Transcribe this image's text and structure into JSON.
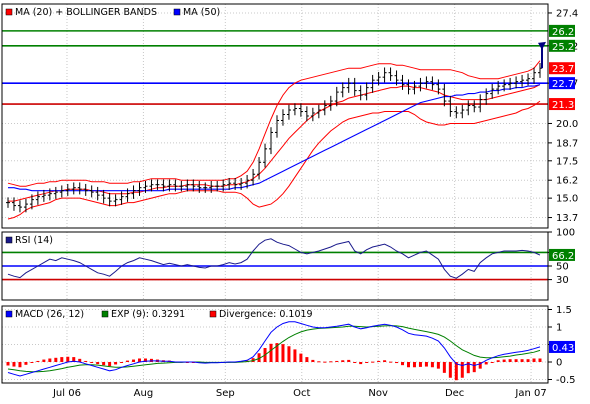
{
  "colors": {
    "background": "#ffffff",
    "grid": "#c8c8c8",
    "ohlc": "#000000",
    "ma20": "#ff0000",
    "bollinger": "#ff0000",
    "ma50": "#0000ff",
    "resistance": "#008000",
    "support_blue": "#0000ff",
    "support_red": "#cc0000",
    "projection": "#000080",
    "rsi_line": "#1a1a8c",
    "macd_line": "#0000ff",
    "exp_line": "#008000",
    "divergence": "#ff0000",
    "tag_green": "#008000",
    "tag_blue": "#0000ff",
    "tag_red": "#ff0000"
  },
  "x_axis": {
    "labels": [
      "Jul 06",
      "Aug",
      "Sep",
      "Oct",
      "Nov",
      "Dec",
      "Jan 07"
    ]
  },
  "price_panel": {
    "legend": [
      {
        "text": "MA (20) + BOLLINGER BANDS",
        "color_key": "ma20"
      },
      {
        "text": "MA (50)",
        "color_key": "ma50"
      }
    ],
    "y_ticks": [
      "27.4",
      "25.2",
      "22.7",
      "20.0",
      "18.7",
      "17.5",
      "16.2",
      "15.0",
      "13.7"
    ],
    "y_range": [
      13.0,
      28.0
    ],
    "levels": [
      {
        "value": 26.2,
        "label": "26.2",
        "color_key": "resistance",
        "tag_color_key": "tag_green"
      },
      {
        "value": 25.2,
        "label": "25.2",
        "color_key": "resistance",
        "tag_color_key": "tag_green"
      },
      {
        "value": 22.7,
        "label": "22.7",
        "color_key": "support_blue",
        "tag_color_key": "tag_blue"
      },
      {
        "value": 21.3,
        "label": "21.3",
        "color_key": "support_red",
        "tag_color_key": "tag_red"
      }
    ],
    "last_price_tag": {
      "value": 23.7,
      "label": "23.7",
      "tag_color_key": "tag_red"
    },
    "ticks": [
      "22.5",
      "21.2",
      "20.0",
      "18.7",
      "17.5",
      "16.2",
      "15.0",
      "13.7"
    ]
  },
  "rsi_panel": {
    "legend": [
      {
        "text": "RSI (14)",
        "color_key": "rsi_line"
      }
    ],
    "y_ticks": [
      "100",
      "70",
      "50",
      "30"
    ],
    "y_range": [
      0,
      100
    ],
    "levels": [
      {
        "value": 70,
        "label": "70",
        "color_key": "resistance"
      },
      {
        "value": 50,
        "label": "50",
        "color_key": "support_blue"
      },
      {
        "value": 30,
        "label": "30",
        "color_key": "support_red"
      }
    ],
    "last_value_tag": {
      "value": 66.26,
      "label": "66.26",
      "tag_color_key": "tag_green"
    }
  },
  "macd_panel": {
    "legend": [
      {
        "text": "MACD (26, 12)",
        "color_key": "macd_line"
      },
      {
        "text": "EXP (9): 0.3291",
        "color_key": "exp_line"
      },
      {
        "text": "Divergence: 0.1019",
        "color_key": "divergence"
      }
    ],
    "y_ticks": [
      "1.5",
      "1",
      "0.5",
      "0",
      "-0.5"
    ],
    "y_range": [
      -0.6,
      1.6
    ],
    "last_value_tag": {
      "value": 0.43,
      "label": "0.43",
      "tag_color_key": "tag_blue"
    }
  },
  "chart_data": {
    "type": "line",
    "title": "",
    "x_labels": [
      "Jul 06",
      "Aug",
      "Sep",
      "Oct",
      "Nov",
      "Dec",
      "Jan 07"
    ],
    "price_close": [
      14.7,
      14.5,
      14.4,
      14.6,
      14.9,
      15.1,
      15.2,
      15.3,
      15.4,
      15.5,
      15.6,
      15.7,
      15.6,
      15.5,
      15.4,
      15.2,
      15.0,
      14.8,
      14.9,
      15.1,
      15.3,
      15.5,
      15.7,
      15.8,
      15.9,
      15.9,
      15.8,
      15.9,
      15.8,
      15.8,
      15.9,
      15.8,
      15.7,
      15.7,
      15.8,
      15.8,
      15.9,
      16.0,
      15.9,
      16.0,
      16.2,
      16.6,
      17.4,
      18.3,
      19.4,
      20.2,
      20.6,
      20.9,
      21.0,
      20.8,
      20.5,
      20.7,
      20.9,
      21.2,
      21.5,
      22.1,
      22.4,
      22.7,
      22.2,
      21.9,
      22.4,
      22.9,
      23.1,
      23.4,
      23.2,
      22.9,
      22.6,
      22.3,
      22.5,
      22.7,
      22.8,
      22.6,
      22.3,
      21.5,
      20.8,
      20.7,
      20.9,
      21.2,
      21.1,
      21.6,
      22.0,
      22.3,
      22.5,
      22.6,
      22.7,
      22.8,
      22.9,
      23.0,
      23.4,
      23.7
    ],
    "ma20": [
      14.8,
      14.8,
      14.9,
      15.0,
      15.1,
      15.2,
      15.3,
      15.4,
      15.5,
      15.5,
      15.6,
      15.6,
      15.6,
      15.6,
      15.5,
      15.5,
      15.4,
      15.3,
      15.3,
      15.3,
      15.3,
      15.4,
      15.4,
      15.5,
      15.6,
      15.7,
      15.7,
      15.8,
      15.8,
      15.8,
      15.9,
      15.9,
      15.9,
      15.9,
      15.8,
      15.8,
      15.8,
      15.9,
      15.9,
      16.0,
      16.1,
      16.3,
      16.6,
      17.0,
      17.5,
      18.0,
      18.5,
      19.0,
      19.4,
      19.8,
      20.2,
      20.5,
      20.8,
      21.0,
      21.2,
      21.4,
      21.5,
      21.7,
      21.8,
      21.9,
      22.0,
      22.1,
      22.2,
      22.3,
      22.4,
      22.4,
      22.5,
      22.5,
      22.4,
      22.4,
      22.3,
      22.2,
      22.1,
      21.9,
      21.8,
      21.7,
      21.6,
      21.6,
      21.6,
      21.6,
      21.6,
      21.7,
      21.8,
      21.9,
      22.0,
      22.1,
      22.2,
      22.3,
      22.4,
      22.6
    ],
    "upper_band": [
      16.0,
      15.9,
      15.8,
      15.8,
      15.9,
      16.0,
      16.0,
      16.1,
      16.1,
      16.2,
      16.2,
      16.2,
      16.2,
      16.2,
      16.1,
      16.1,
      16.1,
      16.0,
      16.0,
      16.0,
      16.0,
      16.1,
      16.1,
      16.2,
      16.3,
      16.3,
      16.3,
      16.3,
      16.3,
      16.2,
      16.2,
      16.2,
      16.2,
      16.2,
      16.2,
      16.2,
      16.2,
      16.3,
      16.3,
      16.5,
      16.8,
      17.4,
      18.3,
      19.3,
      20.3,
      21.2,
      21.9,
      22.4,
      22.7,
      22.9,
      23.0,
      23.1,
      23.2,
      23.3,
      23.4,
      23.5,
      23.6,
      23.7,
      23.7,
      23.7,
      23.8,
      23.9,
      24.0,
      24.0,
      24.0,
      23.9,
      23.9,
      23.8,
      23.7,
      23.6,
      23.6,
      23.6,
      23.6,
      23.6,
      23.6,
      23.5,
      23.4,
      23.2,
      23.1,
      23.0,
      23.0,
      23.0,
      23.0,
      23.1,
      23.2,
      23.3,
      23.4,
      23.5,
      23.7,
      24.2
    ],
    "lower_band": [
      13.6,
      13.7,
      13.9,
      14.2,
      14.4,
      14.5,
      14.6,
      14.7,
      14.9,
      15.0,
      15.0,
      15.0,
      15.0,
      14.9,
      14.8,
      14.7,
      14.6,
      14.5,
      14.5,
      14.6,
      14.7,
      14.7,
      14.8,
      14.9,
      15.0,
      15.1,
      15.2,
      15.3,
      15.3,
      15.4,
      15.5,
      15.5,
      15.5,
      15.5,
      15.5,
      15.5,
      15.4,
      15.4,
      15.4,
      15.3,
      15.0,
      14.6,
      14.4,
      14.5,
      14.6,
      14.9,
      15.3,
      15.8,
      16.4,
      17.0,
      17.6,
      18.2,
      18.7,
      19.1,
      19.5,
      19.8,
      20.1,
      20.3,
      20.4,
      20.5,
      20.6,
      20.7,
      20.7,
      20.8,
      20.8,
      20.8,
      20.8,
      20.8,
      20.6,
      20.3,
      20.1,
      20.0,
      19.9,
      19.9,
      20.0,
      20.0,
      20.0,
      20.0,
      20.0,
      20.1,
      20.2,
      20.3,
      20.4,
      20.5,
      20.6,
      20.7,
      20.9,
      21.0,
      21.2,
      21.5
    ],
    "ma50": [
      15.7,
      15.7,
      15.6,
      15.6,
      15.5,
      15.5,
      15.5,
      15.5,
      15.5,
      15.5,
      15.5,
      15.5,
      15.5,
      15.5,
      15.5,
      15.5,
      15.5,
      15.5,
      15.5,
      15.5,
      15.5,
      15.5,
      15.5,
      15.5,
      15.5,
      15.5,
      15.5,
      15.6,
      15.6,
      15.6,
      15.6,
      15.6,
      15.6,
      15.6,
      15.6,
      15.6,
      15.6,
      15.6,
      15.7,
      15.7,
      15.8,
      15.9,
      16.0,
      16.2,
      16.4,
      16.6,
      16.8,
      17.0,
      17.2,
      17.4,
      17.6,
      17.8,
      18.0,
      18.2,
      18.4,
      18.6,
      18.8,
      19.0,
      19.2,
      19.4,
      19.6,
      19.8,
      20.0,
      20.2,
      20.4,
      20.6,
      20.8,
      21.0,
      21.2,
      21.4,
      21.5,
      21.6,
      21.7,
      21.8,
      21.8,
      21.9,
      21.9,
      22.0,
      22.0,
      22.1,
      22.1,
      22.2,
      22.2,
      22.3,
      22.3,
      22.4,
      22.4,
      22.5,
      22.5,
      22.6
    ],
    "projection": {
      "from": 23.7,
      "to": 25.2
    },
    "rsi": [
      38,
      35,
      33,
      40,
      45,
      50,
      55,
      60,
      58,
      62,
      60,
      58,
      55,
      50,
      45,
      40,
      38,
      35,
      42,
      50,
      55,
      58,
      62,
      60,
      58,
      55,
      52,
      54,
      52,
      50,
      52,
      50,
      48,
      47,
      50,
      50,
      52,
      55,
      53,
      55,
      60,
      72,
      82,
      88,
      90,
      85,
      82,
      80,
      75,
      70,
      68,
      70,
      72,
      75,
      78,
      82,
      84,
      86,
      72,
      68,
      74,
      78,
      80,
      82,
      78,
      72,
      68,
      62,
      66,
      70,
      72,
      66,
      60,
      45,
      35,
      32,
      38,
      45,
      42,
      55,
      62,
      68,
      70,
      72,
      72,
      72,
      73,
      72,
      70,
      66
    ],
    "macd": [
      -0.3,
      -0.35,
      -0.4,
      -0.35,
      -0.3,
      -0.25,
      -0.2,
      -0.15,
      -0.1,
      -0.05,
      0.0,
      0.02,
      0.0,
      -0.05,
      -0.1,
      -0.15,
      -0.2,
      -0.25,
      -0.22,
      -0.15,
      -0.1,
      -0.05,
      0.0,
      0.02,
      0.03,
      0.03,
      0.02,
      0.02,
      0.0,
      0.0,
      0.0,
      0.0,
      -0.02,
      -0.03,
      -0.02,
      -0.02,
      -0.01,
      0.0,
      0.0,
      0.02,
      0.05,
      0.15,
      0.35,
      0.6,
      0.85,
      1.0,
      1.1,
      1.15,
      1.15,
      1.1,
      1.05,
      1.0,
      0.98,
      0.98,
      1.0,
      1.02,
      1.05,
      1.08,
      1.0,
      0.95,
      0.98,
      1.02,
      1.05,
      1.08,
      1.05,
      1.0,
      0.92,
      0.82,
      0.78,
      0.76,
      0.74,
      0.68,
      0.6,
      0.4,
      0.15,
      -0.05,
      -0.1,
      -0.05,
      -0.1,
      -0.05,
      0.05,
      0.12,
      0.18,
      0.22,
      0.25,
      0.28,
      0.3,
      0.33,
      0.38,
      0.43
    ],
    "exp9": [
      -0.2,
      -0.22,
      -0.25,
      -0.27,
      -0.28,
      -0.28,
      -0.27,
      -0.25,
      -0.22,
      -0.19,
      -0.15,
      -0.12,
      -0.09,
      -0.08,
      -0.08,
      -0.09,
      -0.11,
      -0.13,
      -0.15,
      -0.15,
      -0.14,
      -0.12,
      -0.1,
      -0.08,
      -0.06,
      -0.04,
      -0.03,
      -0.02,
      -0.01,
      -0.01,
      0.0,
      0.0,
      0.0,
      -0.01,
      -0.01,
      -0.01,
      -0.01,
      -0.01,
      -0.01,
      0.0,
      0.01,
      0.04,
      0.1,
      0.2,
      0.33,
      0.46,
      0.59,
      0.7,
      0.79,
      0.86,
      0.91,
      0.94,
      0.96,
      0.97,
      0.98,
      0.99,
      1.0,
      1.02,
      1.02,
      1.01,
      1.0,
      1.01,
      1.02,
      1.03,
      1.04,
      1.03,
      1.01,
      0.97,
      0.93,
      0.9,
      0.87,
      0.83,
      0.79,
      0.71,
      0.6,
      0.47,
      0.35,
      0.27,
      0.19,
      0.14,
      0.12,
      0.12,
      0.13,
      0.15,
      0.17,
      0.2,
      0.22,
      0.25,
      0.28,
      0.33
    ],
    "divergence": [
      -0.1,
      -0.13,
      -0.15,
      -0.08,
      -0.02,
      0.03,
      0.07,
      0.1,
      0.12,
      0.14,
      0.15,
      0.14,
      0.09,
      0.03,
      -0.02,
      -0.06,
      -0.09,
      -0.12,
      -0.07,
      0.0,
      0.04,
      0.07,
      0.1,
      0.1,
      0.09,
      0.07,
      0.05,
      0.04,
      0.01,
      0.01,
      0.0,
      0.0,
      -0.02,
      -0.02,
      -0.01,
      -0.01,
      0.0,
      0.01,
      0.01,
      0.02,
      0.04,
      0.11,
      0.25,
      0.4,
      0.52,
      0.54,
      0.51,
      0.45,
      0.36,
      0.24,
      0.14,
      0.06,
      0.02,
      0.01,
      0.02,
      0.03,
      0.05,
      0.06,
      -0.02,
      -0.06,
      -0.02,
      0.01,
      0.03,
      0.05,
      0.01,
      -0.03,
      -0.09,
      -0.15,
      -0.15,
      -0.14,
      -0.13,
      -0.15,
      -0.19,
      -0.31,
      -0.45,
      -0.52,
      -0.45,
      -0.32,
      -0.29,
      -0.19,
      -0.07,
      0.0,
      0.05,
      0.07,
      0.08,
      0.08,
      0.08,
      0.08,
      0.1,
      0.1
    ]
  }
}
